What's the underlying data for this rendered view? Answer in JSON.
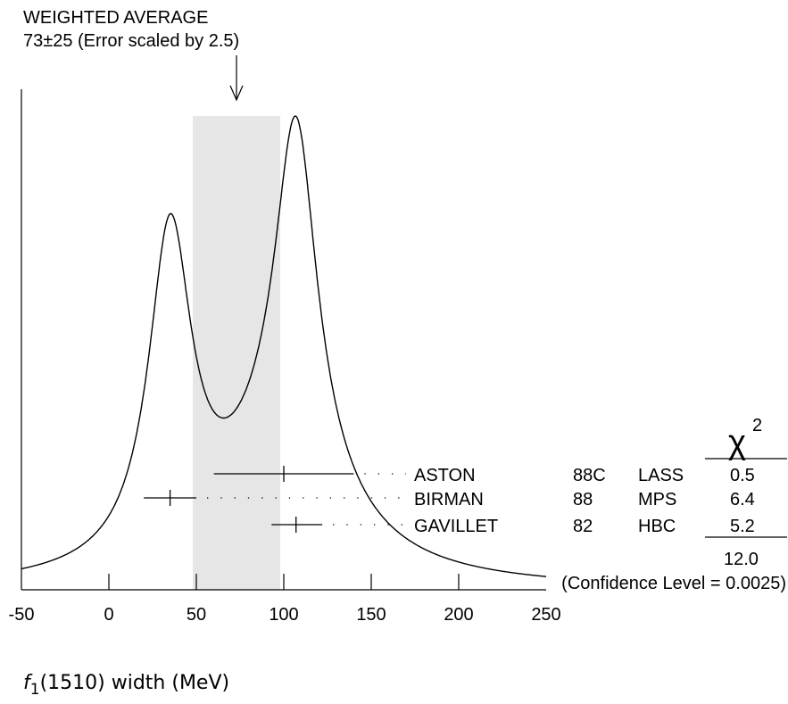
{
  "header": {
    "title": "WEIGHTED AVERAGE",
    "value_text": "73±25 (Error scaled by 2.5)"
  },
  "axis": {
    "label_name": "f",
    "label_sub": "1",
    "label_rest": "(1510) width (MeV)"
  },
  "chi2": {
    "symbol": "χ",
    "power": "2",
    "total": "12.0",
    "confidence": "(Confidence Level = 0.0025)"
  },
  "chart_data": {
    "type": "ideogram",
    "xlim": [
      -50,
      250
    ],
    "x_ticks": [
      -50,
      0,
      50,
      100,
      150,
      200,
      250
    ],
    "x_tick_labels": [
      "-50",
      "0",
      "50",
      "100",
      "150",
      "200",
      "250"
    ],
    "weighted_average": {
      "value": 73,
      "error": 25,
      "scale_factor": 2.5
    },
    "band": [
      48,
      98
    ],
    "measurements": [
      {
        "author": "ASTON",
        "year": "88C",
        "technique": "LASS",
        "value": 100,
        "low": 60,
        "high": 140,
        "chi2": "0.5"
      },
      {
        "author": "BIRMAN",
        "year": "88",
        "technique": "MPS",
        "value": 35,
        "low": 20,
        "high": 50,
        "chi2": "6.4"
      },
      {
        "author": "GAVILLET",
        "year": "82",
        "technique": "HBC",
        "value": 107,
        "low": 93,
        "high": 122,
        "chi2": "5.2"
      }
    ]
  }
}
